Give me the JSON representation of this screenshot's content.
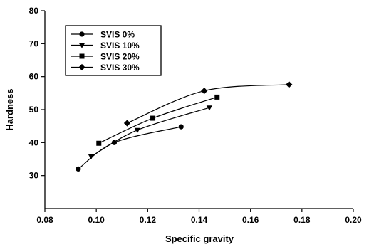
{
  "chart_data": {
    "type": "line",
    "title": "",
    "xlabel": "Specific gravity",
    "ylabel": "Hardness",
    "xlim": [
      0.08,
      0.2
    ],
    "ylim": [
      20,
      80
    ],
    "xticks": [
      "0.08",
      "0.10",
      "0.12",
      "0.14",
      "0.16",
      "0.18",
      "0.20"
    ],
    "yticks": [
      "80",
      "70",
      "60",
      "50",
      "40",
      "30"
    ],
    "grid": false,
    "legend_position": "top-left",
    "series": [
      {
        "name": "SVIS 0%",
        "marker": "circle",
        "x": [
          0.093,
          0.107,
          0.133
        ],
        "y": [
          32,
          40,
          44.8
        ]
      },
      {
        "name": "SVIS 10%",
        "marker": "triangle-down",
        "x": [
          0.098,
          0.116,
          0.144
        ],
        "y": [
          35.8,
          43.8,
          50.6
        ]
      },
      {
        "name": "SVIS 20%",
        "marker": "square",
        "x": [
          0.101,
          0.122,
          0.147
        ],
        "y": [
          39.8,
          47.4,
          53.8
        ]
      },
      {
        "name": "SVIS 30%",
        "marker": "diamond",
        "x": [
          0.112,
          0.142,
          0.175
        ],
        "y": [
          45.9,
          55.7,
          57.6
        ]
      }
    ]
  }
}
